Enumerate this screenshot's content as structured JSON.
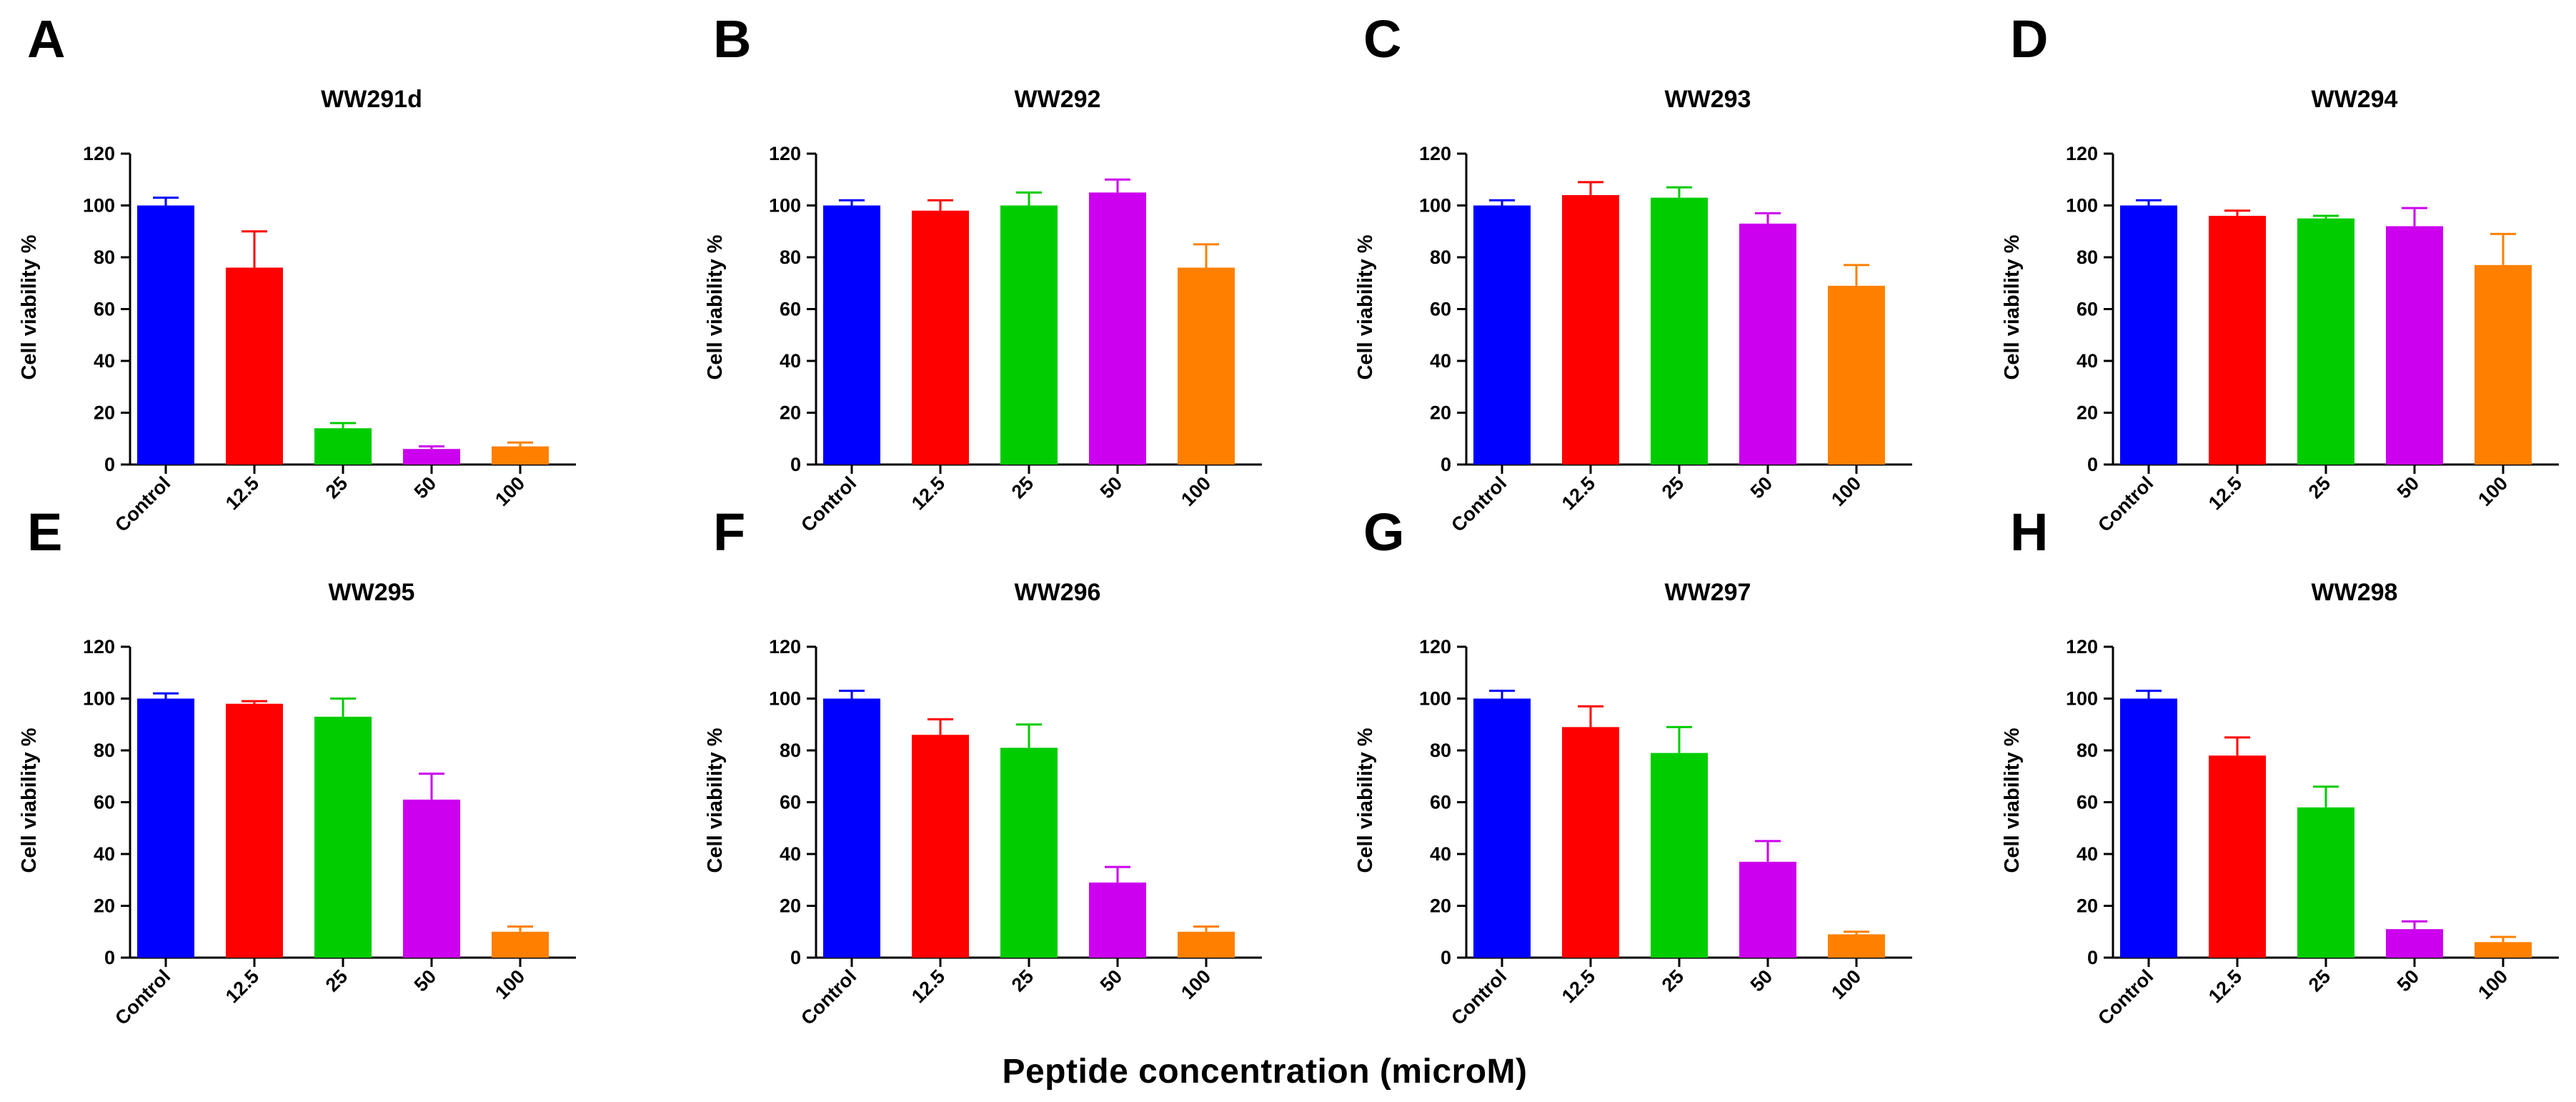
{
  "figure": {
    "xlabel": "Peptide concentration (microM)",
    "colors": [
      "#0000ff",
      "#ff0000",
      "#00cc00",
      "#cc00ee",
      "#ff8000"
    ]
  },
  "chart_data": [
    {
      "type": "bar",
      "panel": "A",
      "title": "WW291d",
      "ylabel": "Cell viability %",
      "categories": [
        "Control",
        "12.5",
        "25",
        "50",
        "100"
      ],
      "values": [
        100,
        76,
        14,
        6,
        7
      ],
      "errors": [
        3,
        14,
        2,
        1,
        1.5
      ],
      "ylim": [
        0,
        120
      ],
      "yticks": [
        "0",
        "20",
        "40",
        "60",
        "80",
        "100",
        "120"
      ]
    },
    {
      "type": "bar",
      "panel": "B",
      "title": "WW292",
      "ylabel": "Cell viability %",
      "categories": [
        "Control",
        "12.5",
        "25",
        "50",
        "100"
      ],
      "values": [
        100,
        98,
        100,
        105,
        76
      ],
      "errors": [
        2,
        4,
        5,
        5,
        9
      ],
      "ylim": [
        0,
        120
      ],
      "yticks": [
        "0",
        "20",
        "40",
        "60",
        "80",
        "100",
        "120"
      ]
    },
    {
      "type": "bar",
      "panel": "C",
      "title": "WW293",
      "ylabel": "Cell viability %",
      "categories": [
        "Control",
        "12.5",
        "25",
        "50",
        "100"
      ],
      "values": [
        100,
        104,
        103,
        93,
        69
      ],
      "errors": [
        2,
        5,
        4,
        4,
        8
      ],
      "ylim": [
        0,
        120
      ],
      "yticks": [
        "0",
        "20",
        "40",
        "60",
        "80",
        "100",
        "120"
      ]
    },
    {
      "type": "bar",
      "panel": "D",
      "title": "WW294",
      "ylabel": "Cell viability %",
      "categories": [
        "Control",
        "12.5",
        "25",
        "50",
        "100"
      ],
      "values": [
        100,
        96,
        95,
        92,
        77
      ],
      "errors": [
        2,
        2,
        1,
        7,
        12
      ],
      "ylim": [
        0,
        120
      ],
      "yticks": [
        "0",
        "20",
        "40",
        "60",
        "80",
        "100",
        "120"
      ]
    },
    {
      "type": "bar",
      "panel": "E",
      "title": "WW295",
      "ylabel": "Cell viability %",
      "categories": [
        "Control",
        "12.5",
        "25",
        "50",
        "100"
      ],
      "values": [
        100,
        98,
        93,
        61,
        10
      ],
      "errors": [
        2,
        1,
        7,
        10,
        2
      ],
      "ylim": [
        0,
        120
      ],
      "yticks": [
        "0",
        "20",
        "40",
        "60",
        "80",
        "100",
        "120"
      ]
    },
    {
      "type": "bar",
      "panel": "F",
      "title": "WW296",
      "ylabel": "Cell viability %",
      "categories": [
        "Control",
        "12.5",
        "25",
        "50",
        "100"
      ],
      "values": [
        100,
        86,
        81,
        29,
        10
      ],
      "errors": [
        3,
        6,
        9,
        6,
        2
      ],
      "ylim": [
        0,
        120
      ],
      "yticks": [
        "0",
        "20",
        "40",
        "60",
        "80",
        "100",
        "120"
      ]
    },
    {
      "type": "bar",
      "panel": "G",
      "title": "WW297",
      "ylabel": "Cell viability %",
      "categories": [
        "Control",
        "12.5",
        "25",
        "50",
        "100"
      ],
      "values": [
        100,
        89,
        79,
        37,
        9
      ],
      "errors": [
        3,
        8,
        10,
        8,
        1
      ],
      "ylim": [
        0,
        120
      ],
      "yticks": [
        "0",
        "20",
        "40",
        "60",
        "80",
        "100",
        "120"
      ]
    },
    {
      "type": "bar",
      "panel": "H",
      "title": "WW298",
      "ylabel": "Cell viability %",
      "categories": [
        "Control",
        "12.5",
        "25",
        "50",
        "100"
      ],
      "values": [
        100,
        78,
        58,
        11,
        6
      ],
      "errors": [
        3,
        7,
        8,
        3,
        2
      ],
      "ylim": [
        0,
        120
      ],
      "yticks": [
        "0",
        "20",
        "40",
        "60",
        "80",
        "100",
        "120"
      ]
    }
  ]
}
